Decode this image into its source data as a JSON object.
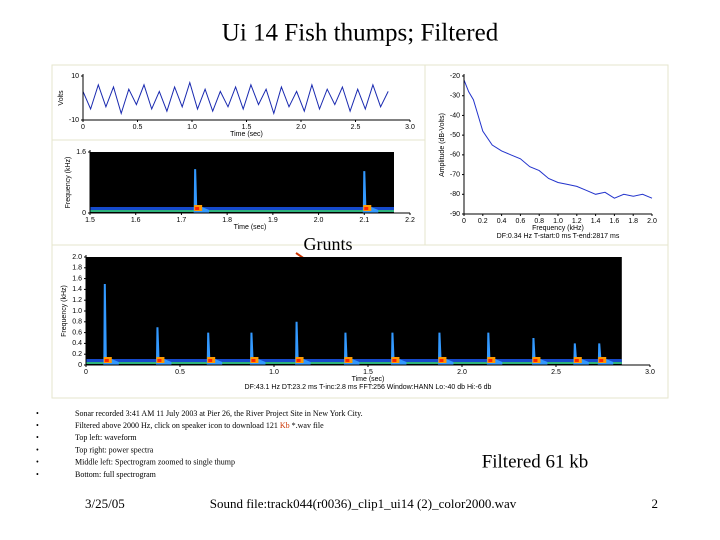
{
  "title": "Ui 14 Fish thumps; Filtered",
  "annotation": "Grunts",
  "chart_data": [
    {
      "type": "line",
      "color": "#1a2ab0",
      "y_label": "Volts",
      "x_label": "Time (sec)",
      "x": [
        0,
        0.07,
        0.14,
        0.21,
        0.28,
        0.35,
        0.42,
        0.49,
        0.56,
        0.63,
        0.7,
        0.77,
        0.84,
        0.91,
        0.98,
        1.05,
        1.12,
        1.19,
        1.26,
        1.33,
        1.4,
        1.47,
        1.54,
        1.61,
        1.68,
        1.75,
        1.82,
        1.89,
        1.96,
        2.03,
        2.1,
        2.17,
        2.24,
        2.31,
        2.38,
        2.45,
        2.52,
        2.59,
        2.66,
        2.73,
        2.8
      ],
      "values": [
        3,
        -5,
        6,
        -4,
        5,
        -7,
        4,
        -3,
        6,
        -5,
        3,
        -6,
        5,
        -4,
        7,
        -5,
        4,
        -6,
        3,
        -4,
        5,
        -5,
        6,
        -3,
        4,
        -7,
        5,
        -4,
        3,
        -6,
        6,
        -5,
        4,
        -3,
        5,
        -6,
        4,
        -5,
        6,
        -4,
        3
      ],
      "xlim": [
        0,
        3
      ],
      "xticks": [
        0,
        0.5,
        {
          "value": 1,
          "label": "1.0"
        },
        1.5,
        {
          "value": 2,
          "label": "2.0"
        },
        2.5,
        {
          "value": 3,
          "label": "3.0"
        }
      ],
      "ylim": [
        -10,
        10
      ],
      "yticks": [
        10,
        -10
      ]
    },
    {
      "type": "spectrogram",
      "y_label": "Frequency (kHz)",
      "x_label": "Time (sec)",
      "x": [
        1.73,
        2.1
      ],
      "values": [
        1.15,
        1.1
      ],
      "xlim": [
        1.5,
        2.2
      ],
      "xticks": [
        1.5,
        1.6,
        1.7,
        1.8,
        1.9,
        {
          "value": 2,
          "label": "2.0"
        },
        2.1,
        2.2
      ],
      "ylim": [
        0,
        1.6
      ],
      "yticks": [
        0,
        1.6
      ]
    },
    {
      "type": "line",
      "color": "#2233cc",
      "y_label": "Amplitude (dB-Volts)",
      "x_label": "Frequency (kHz)",
      "caption": "DF:0.34 Hz   T-start:0 ms   T-end:2817 ms",
      "x": [
        0,
        0.05,
        0.1,
        0.15,
        0.2,
        0.3,
        0.4,
        0.5,
        0.6,
        0.7,
        0.8,
        0.9,
        1.0,
        1.1,
        1.2,
        1.3,
        1.4,
        1.5,
        1.6,
        1.7,
        1.8,
        1.9,
        2.0
      ],
      "values": [
        -22,
        -28,
        -32,
        -40,
        -48,
        -55,
        -58,
        -60,
        -62,
        -66,
        -68,
        -72,
        -74,
        -75,
        -76,
        -78,
        -80,
        -79,
        -82,
        -80,
        -81,
        -80,
        -82
      ],
      "xlim": [
        0,
        2
      ],
      "xticks": [
        0,
        0.2,
        0.4,
        0.6,
        0.8,
        {
          "value": 1,
          "label": "1.0"
        },
        1.2,
        1.4,
        1.6,
        1.8,
        {
          "value": 2,
          "label": "2.0"
        }
      ],
      "ylim": [
        -90,
        -20
      ],
      "yticks": [
        -20,
        -30,
        -40,
        -50,
        -60,
        -70,
        -80,
        -90
      ]
    },
    {
      "type": "spectrogram",
      "y_label": "Frequency (kHz)",
      "x_label": "Time (sec)",
      "caption": "DF:43.1 Hz   DT:23.2 ms   T-inc:2.8 ms   FFT:256   Window:HANN   Lo:-40 db   Hi:-6 db",
      "x": [
        0.1,
        0.38,
        0.65,
        0.88,
        1.12,
        1.38,
        1.63,
        1.88,
        2.14,
        2.38,
        2.6,
        2.73
      ],
      "values": [
        1.5,
        0.7,
        0.6,
        0.6,
        0.8,
        0.6,
        0.6,
        0.6,
        0.6,
        0.5,
        0.4,
        0.4
      ],
      "xlim": [
        0,
        3
      ],
      "xticks": [
        0,
        0.5,
        {
          "value": 1,
          "label": "1.0"
        },
        1.5,
        {
          "value": 2,
          "label": "2.0"
        },
        2.5,
        {
          "value": 3,
          "label": "3.0"
        }
      ],
      "ylim": [
        0,
        2
      ],
      "yticks": [
        0,
        0.2,
        0.4,
        0.6,
        0.8,
        {
          "value": 1,
          "label": "1.0"
        },
        1.2,
        1.4,
        1.6,
        1.8,
        {
          "value": 2,
          "label": "2.0"
        }
      ]
    }
  ],
  "bullets": [
    "Sonar recorded 3:41 AM 11 July 2003 at Pier 26, the River Project Site in New York City.",
    [
      "Filtered above 2000 Hz, click on speaker icon to download 121 ",
      "Kb",
      " *.wav file"
    ],
    "Top left: waveform",
    "Top right: power spectra",
    "Middle left: Spectrogram zoomed to single thump",
    "Bottom: full spectrogram"
  ],
  "side_note": "Filtered 61 kb",
  "footer": {
    "date": "3/25/05",
    "file": "Sound file:track044(r0036)_clip1_ui14  (2)_color2000.wav",
    "page": "2"
  }
}
